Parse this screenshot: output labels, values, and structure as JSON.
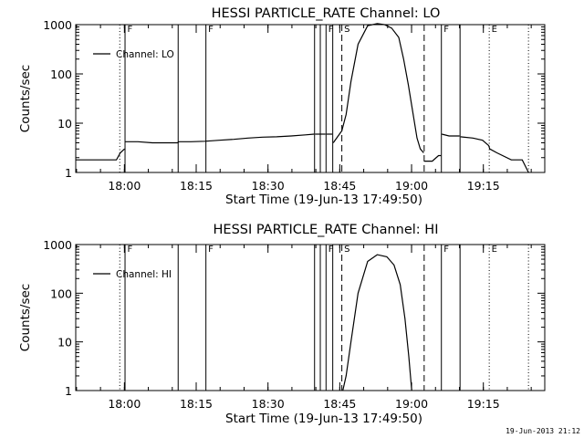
{
  "footer_timestamp": "19-Jun-2013 21:12",
  "chart_data": [
    {
      "type": "line",
      "title": "HESSI PARTICLE_RATE Channel: LO",
      "xlabel": "Start Time (19-Jun-13 17:49:50)",
      "ylabel": "Counts/sec",
      "yscale": "log",
      "ylim": [
        1,
        1000
      ],
      "y_ticks": [
        1,
        10,
        100,
        1000
      ],
      "y_tick_labels": [
        "1",
        "10",
        "100",
        "1000"
      ],
      "x_unit": "minutes after 17:49:50",
      "xlim": [
        0,
        98
      ],
      "x_ticks": [
        10.17,
        25.17,
        40.17,
        55.17,
        70.17,
        85.17
      ],
      "x_tick_labels": [
        "18:00",
        "18:15",
        "18:30",
        "18:45",
        "19:00",
        "19:15"
      ],
      "legend": "Channel: LO",
      "legend_position": "top-left",
      "markers": [
        {
          "x": 9.2,
          "style": "dotted",
          "label": ""
        },
        {
          "x": 10.3,
          "style": "solid",
          "label": "F"
        },
        {
          "x": 21.4,
          "style": "solid",
          "label": ""
        },
        {
          "x": 27.2,
          "style": "solid",
          "label": "F"
        },
        {
          "x": 49.9,
          "style": "solid",
          "label": ""
        },
        {
          "x": 51.1,
          "style": "solid",
          "label": ""
        },
        {
          "x": 52.3,
          "style": "solid",
          "label": "F"
        },
        {
          "x": 53.7,
          "style": "solid",
          "label": ""
        },
        {
          "x": 55.6,
          "style": "dashed",
          "label": "S"
        },
        {
          "x": 72.8,
          "style": "dashed",
          "label": ""
        },
        {
          "x": 76.4,
          "style": "solid",
          "label": "F"
        },
        {
          "x": 80.3,
          "style": "solid",
          "label": ""
        },
        {
          "x": 86.4,
          "style": "dotted",
          "label": "E"
        },
        {
          "x": 94.6,
          "style": "dotted",
          "label": ""
        }
      ],
      "series": [
        {
          "segments": [
            {
              "x": [
                0,
                1.5,
                3,
                4.5,
                6,
                7.5,
                8.5,
                9.3,
                10.2
              ],
              "y": [
                1.8,
                1.8,
                1.8,
                1.8,
                1.8,
                1.8,
                1.8,
                2.5,
                3
              ]
            },
            {
              "x": [
                10.3,
                13,
                16,
                19,
                21.3,
                21.5,
                24,
                27,
                30,
                33,
                36,
                39,
                42,
                45,
                48,
                49.8
              ],
              "y": [
                4.2,
                4.2,
                4,
                4,
                4,
                4.2,
                4.2,
                4.3,
                4.5,
                4.7,
                5,
                5.2,
                5.3,
                5.5,
                5.8,
                6
              ]
            },
            {
              "x": [
                50.0,
                51.0
              ],
              "y": [
                6,
                6
              ]
            },
            {
              "x": [
                51.2,
                52.2
              ],
              "y": [
                6,
                6
              ]
            },
            {
              "x": [
                52.4,
                53.6
              ],
              "y": [
                6,
                6
              ]
            },
            {
              "x": [
                53.8,
                55.6,
                56.5,
                57.5,
                59,
                61,
                63,
                64.5,
                66,
                67.5,
                68.5,
                69.5,
                70.5,
                71.3,
                72,
                72.7
              ],
              "y": [
                4,
                7,
                15,
                70,
                400,
                950,
                1050,
                1000,
                850,
                550,
                200,
                60,
                15,
                5,
                3,
                2.5
              ]
            },
            {
              "x": [
                72.8,
                73.5,
                74.5,
                75.8,
                76.3
              ],
              "y": [
                1.7,
                1.7,
                1.7,
                2.2,
                2.2
              ]
            },
            {
              "x": [
                76.5,
                78,
                80.2
              ],
              "y": [
                6,
                5.5,
                5.5
              ]
            },
            {
              "x": [
                80.4,
                83,
                85,
                86.3,
                86.5,
                88,
                91,
                93.3,
                94.6
              ],
              "y": [
                5.3,
                5,
                4.5,
                3.5,
                3,
                2.5,
                1.8,
                1.8,
                1
              ]
            }
          ]
        }
      ]
    },
    {
      "type": "line",
      "title": "HESSI PARTICLE_RATE Channel: HI",
      "xlabel": "Start Time (19-Jun-13 17:49:50)",
      "ylabel": "Counts/sec",
      "yscale": "log",
      "ylim": [
        1,
        1000
      ],
      "y_ticks": [
        1,
        10,
        100,
        1000
      ],
      "y_tick_labels": [
        "1",
        "10",
        "100",
        "1000"
      ],
      "x_unit": "minutes after 17:49:50",
      "xlim": [
        0,
        98
      ],
      "x_ticks": [
        10.17,
        25.17,
        40.17,
        55.17,
        70.17,
        85.17
      ],
      "x_tick_labels": [
        "18:00",
        "18:15",
        "18:30",
        "18:45",
        "19:00",
        "19:15"
      ],
      "legend": "Channel: HI",
      "legend_position": "top-left",
      "markers": [
        {
          "x": 9.2,
          "style": "dotted",
          "label": ""
        },
        {
          "x": 10.3,
          "style": "solid",
          "label": "F"
        },
        {
          "x": 21.4,
          "style": "solid",
          "label": ""
        },
        {
          "x": 27.2,
          "style": "solid",
          "label": "F"
        },
        {
          "x": 49.9,
          "style": "solid",
          "label": ""
        },
        {
          "x": 51.1,
          "style": "solid",
          "label": ""
        },
        {
          "x": 52.3,
          "style": "solid",
          "label": "F"
        },
        {
          "x": 53.7,
          "style": "solid",
          "label": ""
        },
        {
          "x": 55.6,
          "style": "dashed",
          "label": "S"
        },
        {
          "x": 72.8,
          "style": "dashed",
          "label": ""
        },
        {
          "x": 76.4,
          "style": "solid",
          "label": "F"
        },
        {
          "x": 80.3,
          "style": "solid",
          "label": ""
        },
        {
          "x": 86.4,
          "style": "dotted",
          "label": "E"
        },
        {
          "x": 94.6,
          "style": "dotted",
          "label": ""
        }
      ],
      "series": [
        {
          "segments": [
            {
              "x": [
                55.8,
                56.5,
                57.5,
                59,
                61,
                63,
                65,
                66.5,
                67.8,
                68.8,
                69.6,
                70.2
              ],
              "y": [
                1,
                2,
                10,
                100,
                450,
                620,
                560,
                380,
                150,
                30,
                5,
                1
              ]
            }
          ]
        }
      ]
    }
  ]
}
